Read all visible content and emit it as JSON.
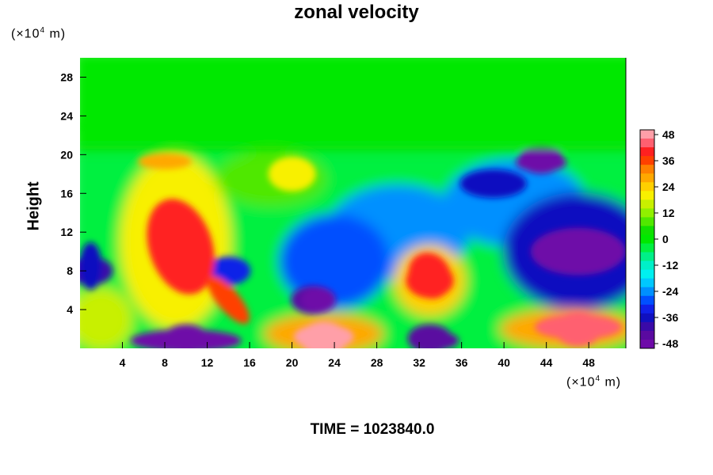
{
  "chart_data": {
    "type": "heatmap",
    "title": "zonal velocity",
    "xlabel": "",
    "ylabel": "Height",
    "x_unit": "(×10",
    "y_unit": "(×10",
    "unit_exp": "4",
    "unit_tail": " m)",
    "xlim": [
      0,
      51.5
    ],
    "ylim": [
      0,
      30
    ],
    "x_ticks": [
      4,
      8,
      12,
      16,
      20,
      24,
      28,
      32,
      36,
      40,
      44,
      48
    ],
    "y_ticks": [
      4,
      8,
      12,
      16,
      20,
      24,
      28
    ],
    "colorbar": {
      "range": [
        -48,
        48
      ],
      "tick_values": [
        48,
        36,
        24,
        12,
        0,
        -12,
        -24,
        -36,
        -48
      ],
      "colors_top_to_bottom": [
        "#ff9fa8",
        "#ff6070",
        "#ff2020",
        "#ff4000",
        "#ff8000",
        "#ffa800",
        "#ffd000",
        "#f8f000",
        "#c8f000",
        "#90f000",
        "#50e800",
        "#10e000",
        "#00e800",
        "#00f040",
        "#00f088",
        "#00f0c8",
        "#00f0f0",
        "#00c8ff",
        "#0090ff",
        "#0050ff",
        "#1020e8",
        "#1010c0",
        "#3a0aa8",
        "#5a0aa0",
        "#6e0aa8"
      ]
    },
    "field_description_features": [
      {
        "x": 9,
        "y": 10,
        "value": 44
      },
      {
        "x": 23,
        "y": 1,
        "value": 48
      },
      {
        "x": 10,
        "y": 1,
        "value": -48
      },
      {
        "x": 33,
        "y": 1,
        "value": -44
      },
      {
        "x": 22,
        "y": 5,
        "value": -44
      },
      {
        "x": 47,
        "y": 10,
        "value": -48
      },
      {
        "x": 39,
        "y": 17,
        "value": -38
      },
      {
        "x": 43.5,
        "y": 19.5,
        "value": -46
      },
      {
        "x": 33,
        "y": 7,
        "value": 40
      },
      {
        "x": 47,
        "y": 2,
        "value": 46
      },
      {
        "x": 14,
        "y": 8,
        "value": -30
      },
      {
        "x": 1,
        "y": 8,
        "value": -38
      },
      {
        "x": 20,
        "y": 18,
        "value": 20
      }
    ]
  },
  "footer": {
    "time_label": "TIME = 1023840.0"
  }
}
